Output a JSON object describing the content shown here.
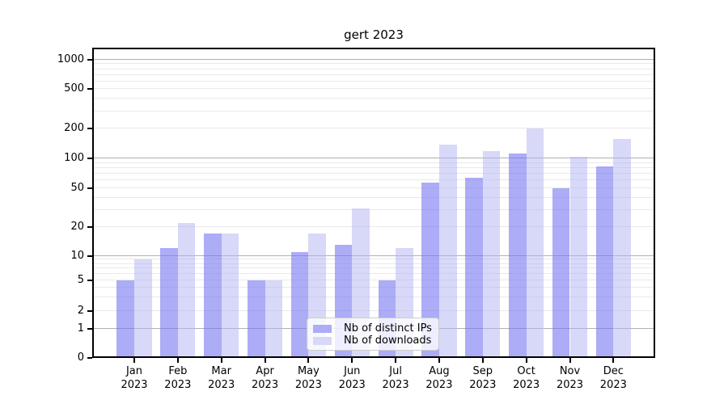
{
  "title": "gert 2023",
  "chart_data": {
    "type": "bar",
    "title": "gert 2023",
    "categories": [
      "Jan 2023",
      "Feb 2023",
      "Mar 2023",
      "Apr 2023",
      "May 2023",
      "Jun 2023",
      "Jul 2023",
      "Aug 2023",
      "Sep 2023",
      "Oct 2023",
      "Nov 2023",
      "Dec 2023"
    ],
    "series": [
      {
        "name": "Nb of distinct IPs",
        "bar_color": "rgba(116,116,242,0.6)",
        "swatch_color": "#acacf7",
        "values": [
          5,
          12,
          17,
          5,
          11,
          13,
          5,
          57,
          64,
          112,
          50,
          83
        ]
      },
      {
        "name": "Nb of downloads",
        "bar_color": "rgba(180,180,241,0.52)",
        "swatch_color": "#d8d8f8",
        "values": [
          9,
          22,
          17,
          5,
          17,
          31,
          12,
          138,
          118,
          200,
          103,
          158
        ]
      }
    ],
    "xlabel": "",
    "ylabel": "",
    "yscale": "symlog",
    "yticks": [
      0,
      1,
      2,
      5,
      10,
      20,
      50,
      100,
      200,
      500,
      1000
    ],
    "ylim": [
      0,
      1300
    ],
    "grid": true,
    "major_gridline_color": "#b0b0b0",
    "minor_gridline_color": "#e9e9e9",
    "legend_position": "lower center",
    "background_color": "#ffffff",
    "spine_color": "#000000"
  }
}
